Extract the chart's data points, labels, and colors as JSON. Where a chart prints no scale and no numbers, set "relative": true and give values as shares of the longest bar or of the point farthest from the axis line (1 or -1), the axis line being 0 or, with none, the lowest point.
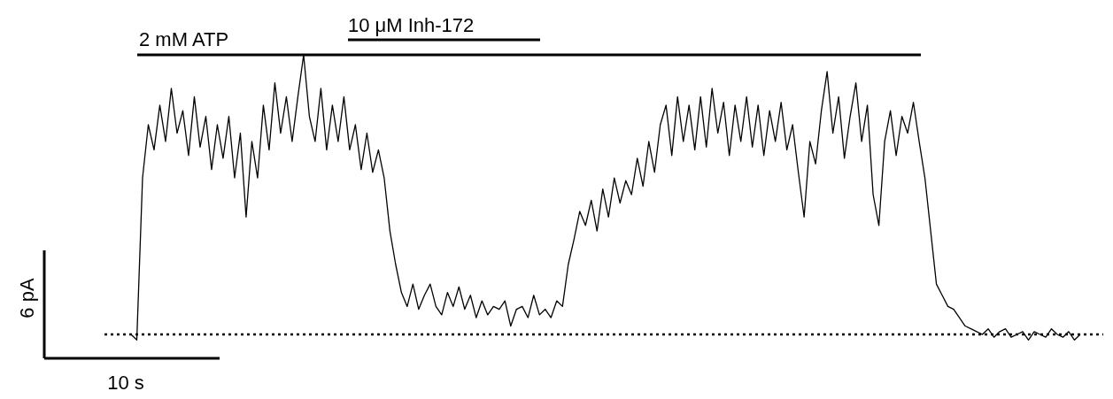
{
  "chart_data": {
    "type": "line",
    "relative": true,
    "line_style": "solid",
    "categories": [
      null,
      null,
      null,
      null,
      null,
      null,
      null,
      null,
      null,
      null,
      null,
      null,
      null,
      null,
      null,
      null,
      null,
      null,
      null,
      null,
      null,
      null,
      null,
      null,
      null,
      null,
      null,
      null,
      null,
      null,
      null,
      null,
      null,
      null,
      null,
      null,
      null,
      null,
      null,
      null,
      null,
      null,
      null,
      null,
      null,
      null,
      null,
      null,
      null,
      null,
      null,
      null,
      null,
      null,
      null,
      null,
      null,
      null,
      null,
      null,
      null,
      null,
      null,
      null,
      null,
      null,
      null,
      null,
      null,
      null,
      null,
      null,
      null,
      null,
      null,
      null,
      null,
      null,
      null,
      null,
      null,
      null,
      null,
      null,
      null,
      null,
      null,
      null,
      null,
      null,
      null,
      null,
      null,
      null,
      null,
      null,
      null,
      null,
      null,
      null,
      null,
      null,
      null,
      null,
      null,
      null,
      null,
      null,
      null,
      null,
      null,
      null,
      null,
      null,
      null,
      null,
      null,
      null,
      null,
      null,
      null,
      null,
      null,
      null,
      null,
      null,
      null,
      null,
      null,
      null,
      null,
      null,
      null,
      null,
      null,
      null,
      null,
      null,
      null,
      null,
      null,
      null,
      null,
      null,
      null,
      null,
      null,
      null,
      null,
      null,
      null,
      null,
      null,
      null,
      null,
      null,
      null,
      null,
      null,
      null,
      null,
      null,
      null,
      null,
      null,
      null
    ],
    "series": [
      {
        "color": "#000000",
        "values": [
          0,
          -0.02,
          0.56,
          0.75,
          0.66,
          0.82,
          0.69,
          0.88,
          0.72,
          0.8,
          0.64,
          0.85,
          0.67,
          0.78,
          0.59,
          0.75,
          0.63,
          0.78,
          0.56,
          0.72,
          0.42,
          0.69,
          0.56,
          0.82,
          0.66,
          0.9,
          0.72,
          0.85,
          0.69,
          0.85,
          1,
          0.78,
          0.69,
          0.88,
          0.66,
          0.82,
          0.69,
          0.85,
          0.66,
          0.75,
          0.59,
          0.72,
          0.58,
          0.66,
          0.56,
          0.37,
          0.25,
          0.15,
          0.1,
          0.18,
          0.09,
          0.14,
          0.18,
          0.1,
          0.07,
          0.15,
          0.1,
          0.17,
          0.09,
          0.14,
          0.06,
          0.12,
          0.07,
          0.1,
          0.09,
          0.12,
          0.03,
          0.09,
          0.1,
          0.06,
          0.14,
          0.07,
          0.09,
          0.06,
          0.12,
          0.1,
          0.25,
          0.34,
          0.44,
          0.39,
          0.48,
          0.37,
          0.52,
          0.42,
          0.56,
          0.47,
          0.55,
          0.5,
          0.63,
          0.53,
          0.69,
          0.58,
          0.75,
          0.82,
          0.64,
          0.85,
          0.69,
          0.82,
          0.66,
          0.85,
          0.67,
          0.88,
          0.72,
          0.83,
          0.64,
          0.82,
          0.69,
          0.85,
          0.67,
          0.82,
          0.64,
          0.8,
          0.69,
          0.83,
          0.66,
          0.75,
          0.58,
          0.42,
          0.69,
          0.61,
          0.8,
          0.94,
          0.72,
          0.85,
          0.63,
          0.78,
          0.9,
          0.69,
          0.82,
          0.5,
          0.39,
          0.69,
          0.8,
          0.64,
          0.78,
          0.72,
          0.83,
          0.69,
          0.56,
          0.37,
          0.18,
          0.14,
          0.1,
          0.09,
          0.06,
          0.03,
          0.02,
          0.01,
          0,
          0.02,
          -0.01,
          0.01,
          0.02,
          -0.01,
          0,
          0.01,
          -0.02,
          0.01,
          0,
          -0.01,
          0.02,
          0,
          -0.01,
          0.01,
          -0.02,
          0
        ]
      }
    ],
    "ref_lines": [
      {
        "axis": "y",
        "value": 0,
        "line_style": "dotted",
        "color": "#000000"
      }
    ],
    "annotations": [
      "2 mM ATP",
      "10 μM Inh-172",
      "6 pA",
      "10 s"
    ]
  }
}
